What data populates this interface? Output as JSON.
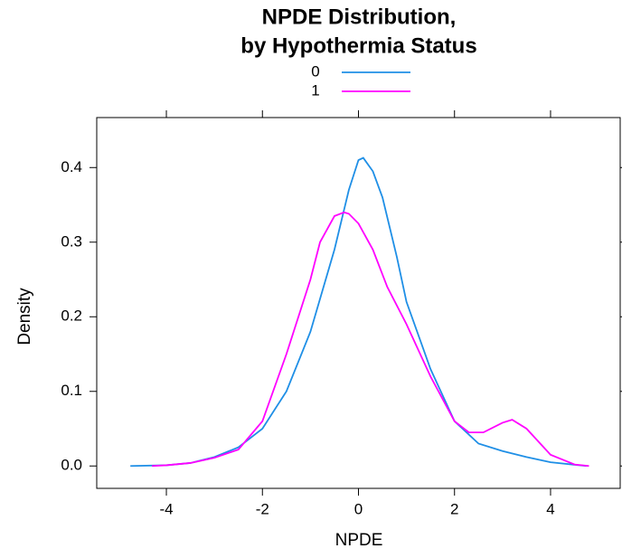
{
  "chart_data": {
    "type": "line",
    "title": [
      "NPDE Distribution,",
      "by Hypothermia Status"
    ],
    "x_label": "NPDE",
    "y_label": "Density",
    "xlim": [
      -5.45,
      5.45
    ],
    "ylim": [
      -0.03,
      0.467
    ],
    "xticks": [
      -4,
      -2,
      0,
      2,
      4
    ],
    "yticks": [
      {
        "value": 0,
        "label": "0.0"
      },
      0.1,
      0.2,
      0.3,
      0.4
    ],
    "series": [
      {
        "name": "0",
        "color": "#1f8fe6",
        "x": [
          -4.75,
          -4,
          -3.5,
          -3,
          -2.5,
          -2,
          -1.5,
          -1,
          -0.5,
          -0.2,
          0,
          0.1,
          0.3,
          0.5,
          0.8,
          1,
          1.5,
          2,
          2.5,
          3,
          3.5,
          4,
          4.75
        ],
        "values": [
          0,
          0.001,
          0.004,
          0.012,
          0.025,
          0.05,
          0.1,
          0.18,
          0.29,
          0.37,
          0.41,
          0.413,
          0.395,
          0.36,
          0.28,
          0.22,
          0.13,
          0.06,
          0.03,
          0.02,
          0.012,
          0.005,
          0
        ]
      },
      {
        "name": "1",
        "color": "#ff00ff",
        "x": [
          -4.3,
          -4,
          -3.5,
          -3,
          -2.5,
          -2,
          -1.5,
          -1,
          -0.8,
          -0.5,
          -0.3,
          -0.2,
          0,
          0.3,
          0.6,
          1,
          1.5,
          2,
          2.3,
          2.6,
          3,
          3.2,
          3.5,
          4,
          4.5,
          4.8
        ],
        "values": [
          0,
          0.001,
          0.004,
          0.011,
          0.022,
          0.06,
          0.15,
          0.25,
          0.3,
          0.335,
          0.34,
          0.338,
          0.325,
          0.29,
          0.24,
          0.19,
          0.12,
          0.06,
          0.045,
          0.045,
          0.058,
          0.062,
          0.05,
          0.015,
          0.002,
          0
        ]
      }
    ]
  }
}
